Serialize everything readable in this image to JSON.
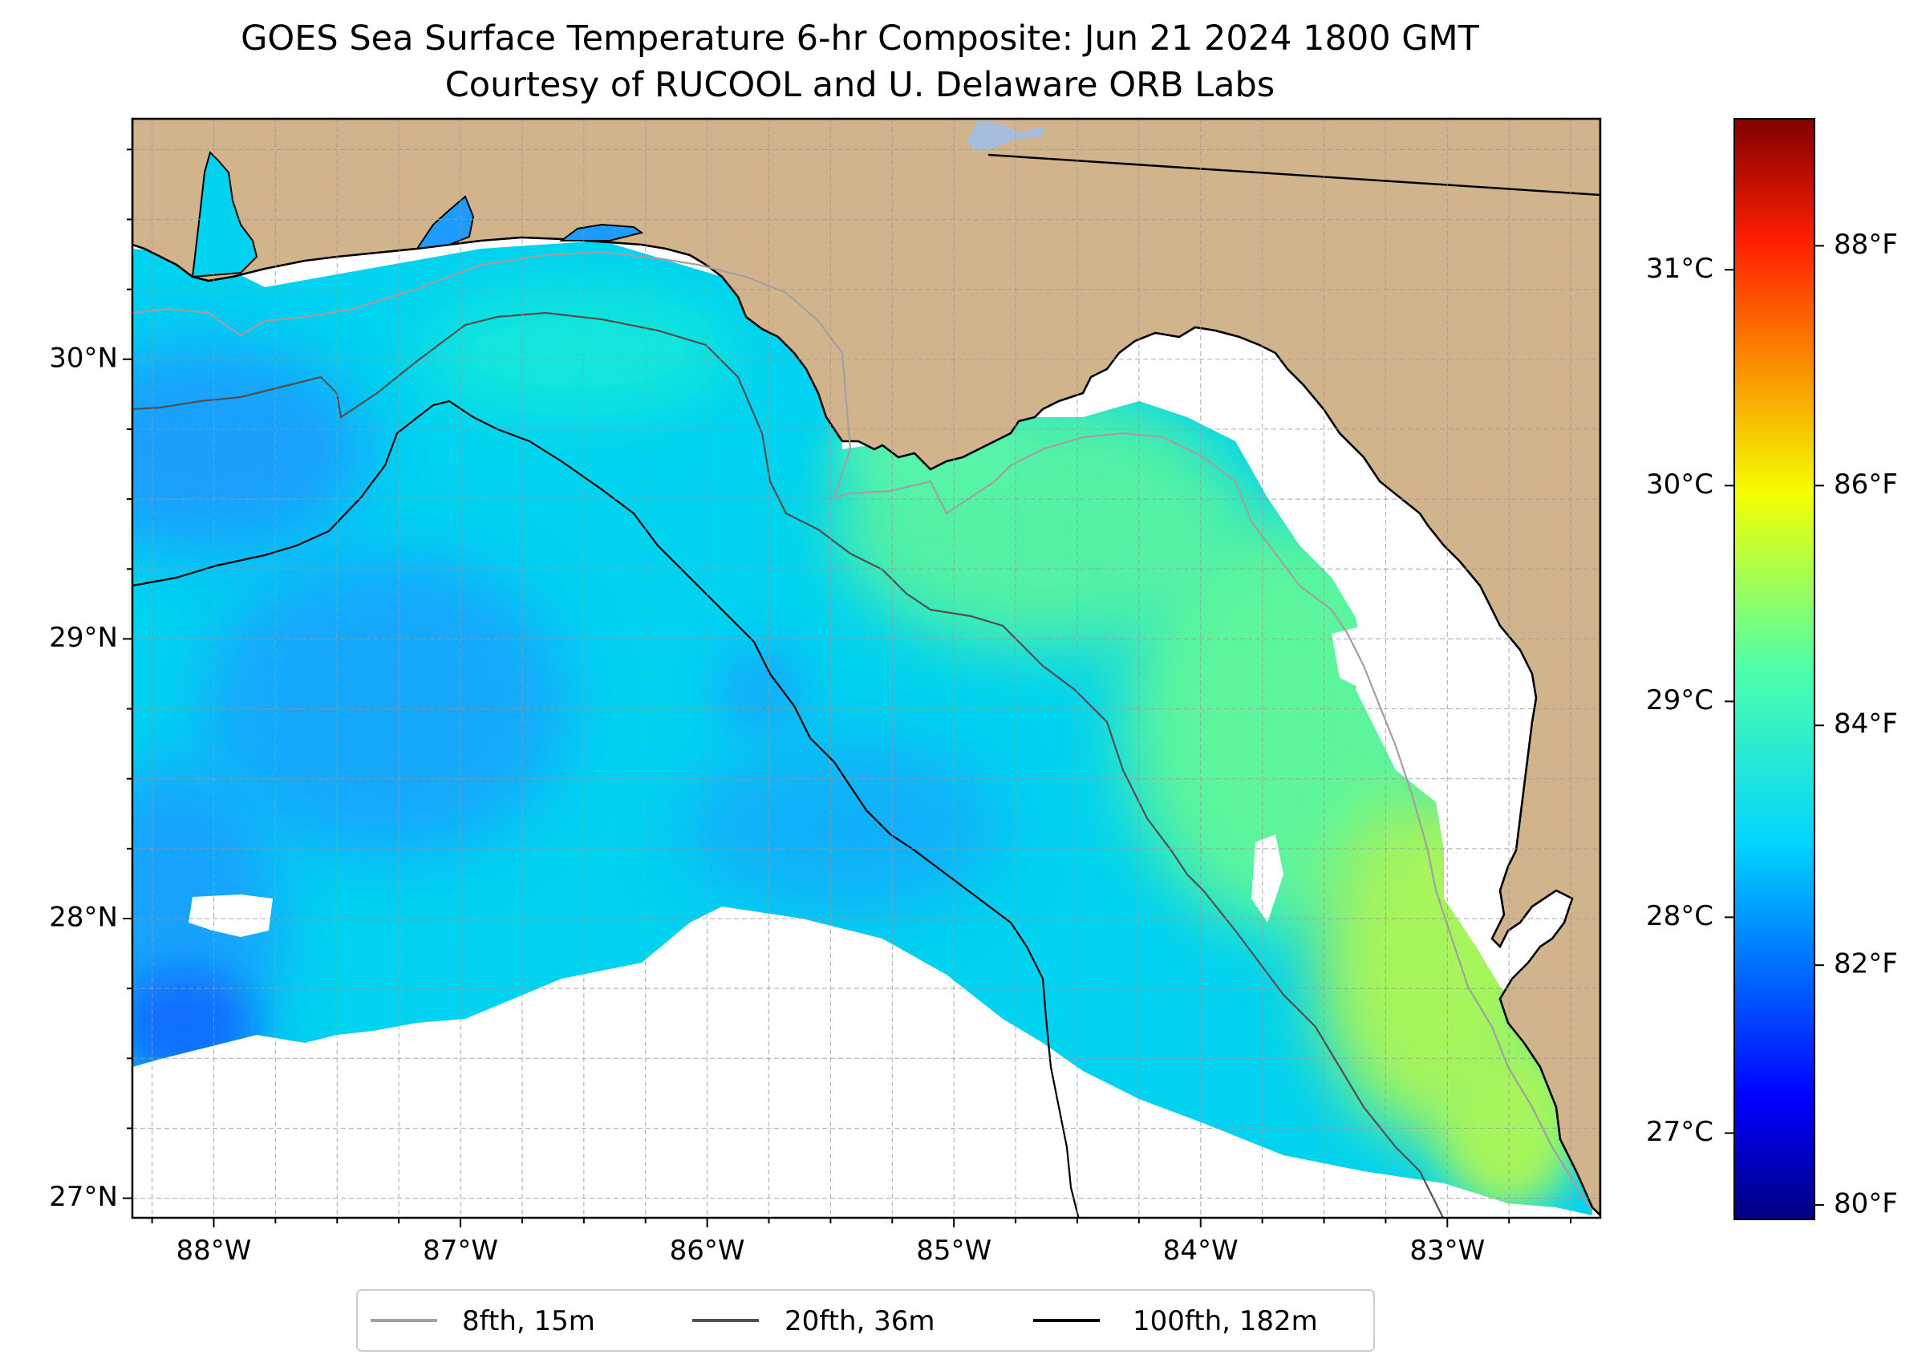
{
  "title": {
    "line1": "GOES Sea Surface Temperature 6-hr Composite: Jun 21 2024 1800 GMT",
    "line2": "Courtesy of RUCOOL and U. Delaware ORB Labs"
  },
  "map": {
    "lon_range": [
      -88.33,
      -82.38
    ],
    "lat_range": [
      26.93,
      30.86
    ],
    "lon_ticks": [
      {
        "value": -88,
        "label": "88°W"
      },
      {
        "value": -87,
        "label": "87°W"
      },
      {
        "value": -86,
        "label": "86°W"
      },
      {
        "value": -85,
        "label": "85°W"
      },
      {
        "value": -84,
        "label": "84°W"
      },
      {
        "value": -83,
        "label": "83°W"
      }
    ],
    "lat_ticks": [
      {
        "value": 30,
        "label": "30°N"
      },
      {
        "value": 29,
        "label": "29°N"
      },
      {
        "value": 28,
        "label": "28°N"
      },
      {
        "value": 27,
        "label": "27°N"
      }
    ],
    "gridlines": true,
    "colors": {
      "land": "#d2b48c",
      "no_data": "#ffffff",
      "coast": "#000000",
      "gulf_water": "#00d2f0",
      "warm_shelf": "#5cf59c",
      "warmest_shelf": "#a6f55c",
      "cool_water": "#1e9bff",
      "coolest_water": "#0a64ff",
      "lake": "#a6bddb"
    }
  },
  "colorbar": {
    "celsius_range": [
      26.6,
      31.7
    ],
    "celsius_ticks": [
      {
        "value": 27,
        "label": "27°C"
      },
      {
        "value": 28,
        "label": "28°C"
      },
      {
        "value": 29,
        "label": "29°C"
      },
      {
        "value": 30,
        "label": "30°C"
      },
      {
        "value": 31,
        "label": "31°C"
      }
    ],
    "fahrenheit_ticks": [
      {
        "value": 80,
        "label": "80°F"
      },
      {
        "value": 82,
        "label": "82°F"
      },
      {
        "value": 84,
        "label": "84°F"
      },
      {
        "value": 86,
        "label": "86°F"
      },
      {
        "value": 88,
        "label": "88°F"
      }
    ],
    "colormap": "jet"
  },
  "legend": {
    "placement": "bottom-center",
    "items": [
      {
        "label": "8fth, 15m",
        "color": "#a0a0a0"
      },
      {
        "label": "20fth, 36m",
        "color": "#505050"
      },
      {
        "label": "100fth, 182m",
        "color": "#000000"
      }
    ]
  }
}
